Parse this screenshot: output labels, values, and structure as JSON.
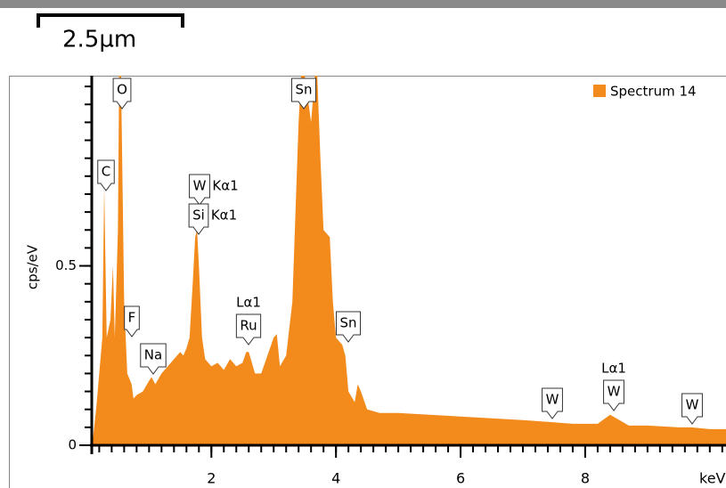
{
  "scale_bar": {
    "label": "2.5µm"
  },
  "chart_data": {
    "type": "area",
    "ylabel": "cps/eV",
    "xlabel": "keV",
    "x": [
      0.1,
      0.15,
      0.2,
      0.25,
      0.28,
      0.32,
      0.38,
      0.42,
      0.45,
      0.5,
      0.52,
      0.55,
      0.6,
      0.65,
      0.72,
      0.75,
      0.8,
      0.9,
      1.0,
      1.04,
      1.1,
      1.2,
      1.3,
      1.4,
      1.5,
      1.55,
      1.6,
      1.65,
      1.7,
      1.74,
      1.77,
      1.8,
      1.85,
      1.9,
      2.0,
      2.1,
      2.2,
      2.3,
      2.4,
      2.5,
      2.56,
      2.6,
      2.7,
      2.8,
      2.9,
      3.0,
      3.05,
      3.1,
      3.2,
      3.3,
      3.4,
      3.44,
      3.5,
      3.6,
      3.66,
      3.7,
      3.75,
      3.8,
      3.9,
      3.95,
      4.0,
      4.1,
      4.15,
      4.2,
      4.3,
      4.35,
      4.4,
      4.5,
      4.7,
      5.0,
      5.5,
      6.0,
      6.5,
      7.0,
      7.4,
      7.8,
      8.2,
      8.4,
      8.5,
      8.7,
      9.0,
      9.5,
      9.7,
      10.0,
      10.26
    ],
    "series": [
      {
        "name": "Spectrum 14",
        "color": "#f28a1c",
        "values": [
          0.02,
          0.1,
          0.2,
          0.3,
          0.72,
          0.3,
          0.35,
          0.5,
          0.3,
          0.6,
          1.03,
          1.03,
          0.4,
          0.2,
          0.17,
          0.13,
          0.14,
          0.15,
          0.18,
          0.19,
          0.17,
          0.2,
          0.22,
          0.24,
          0.26,
          0.25,
          0.27,
          0.3,
          0.45,
          0.58,
          0.6,
          0.5,
          0.3,
          0.24,
          0.22,
          0.23,
          0.21,
          0.24,
          0.22,
          0.23,
          0.26,
          0.26,
          0.2,
          0.2,
          0.25,
          0.3,
          0.31,
          0.22,
          0.25,
          0.4,
          0.9,
          1.03,
          1.03,
          0.9,
          1.03,
          1.03,
          0.8,
          0.6,
          0.58,
          0.4,
          0.3,
          0.28,
          0.25,
          0.15,
          0.12,
          0.17,
          0.15,
          0.1,
          0.09,
          0.09,
          0.085,
          0.08,
          0.075,
          0.07,
          0.065,
          0.06,
          0.06,
          0.085,
          0.075,
          0.055,
          0.055,
          0.05,
          0.05,
          0.045,
          0.045
        ]
      }
    ],
    "xlim": [
      0.08,
      10.26
    ],
    "ylim": [
      0,
      1.03
    ],
    "xticks": [
      2,
      4,
      6,
      8
    ],
    "yticks": [
      0,
      0.5
    ],
    "xminor": 0.2,
    "yminor": 0.05,
    "legend": "top-right",
    "annotations": [
      {
        "box": "O"
      },
      {
        "box": "C"
      },
      {
        "box": "Sn"
      },
      {
        "box": "W",
        "line": "Kα1"
      },
      {
        "box": "Si",
        "line": "Kα1"
      },
      {
        "box": "F"
      },
      {
        "box": "Na"
      },
      {
        "box": "Ru",
        "line": "Lα1"
      },
      {
        "box": "Sn"
      },
      {
        "box": "W"
      },
      {
        "box": "W",
        "line": "Lα1"
      },
      {
        "box": "W"
      }
    ]
  }
}
